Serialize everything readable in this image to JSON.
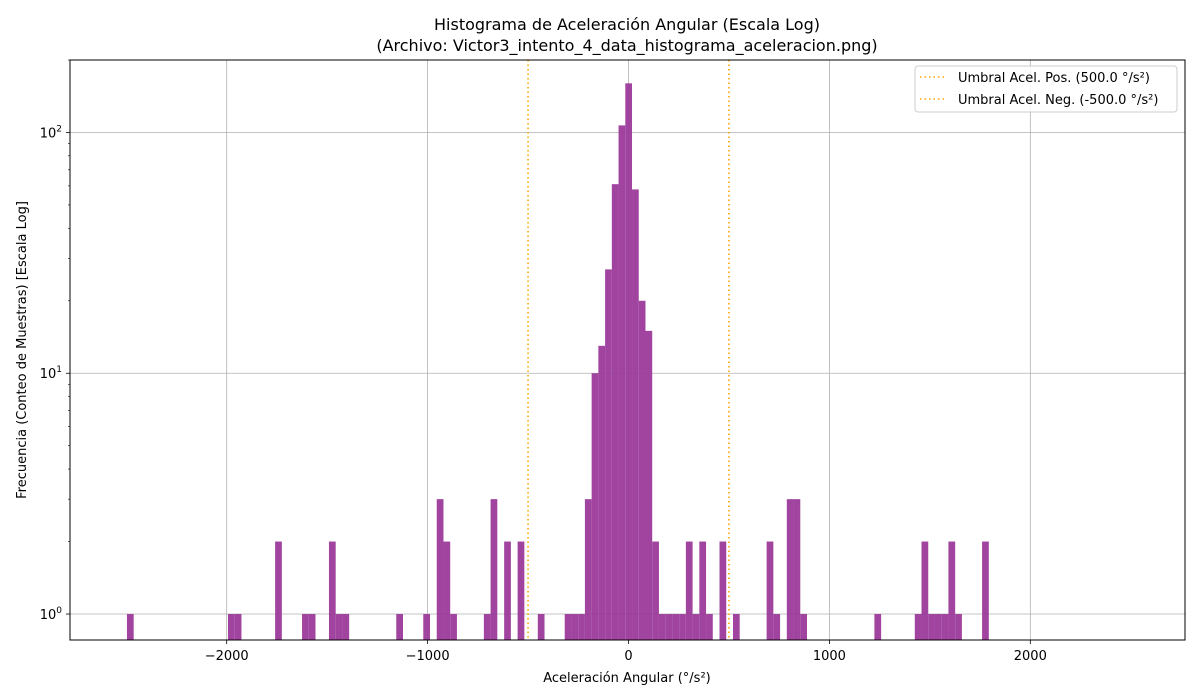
{
  "chart_data": {
    "type": "bar",
    "title": "Histograma de Aceleración Angular (Escala Log)",
    "subtitle": "(Archivo: Victor3_intento_4_data_histograma_aceleracion.png)",
    "xlabel": "Aceleración Angular (°/s²)",
    "ylabel": "Frecuencia (Conteo de Muestras) [Escala Log]",
    "x_scale": "linear",
    "y_scale": "log",
    "xlim": [
      -2780,
      2770
    ],
    "ylim": [
      0.78,
      200
    ],
    "xticks": [
      -2000,
      -1000,
      0,
      1000,
      2000
    ],
    "xtick_labels": [
      "−2000",
      "−1000",
      "0",
      "1000",
      "2000"
    ],
    "yticks": [
      1,
      10,
      100
    ],
    "ytick_labels": [
      "10^0",
      "10^1",
      "10^2"
    ],
    "grid": true,
    "bar_color": "#9b3a9b",
    "bin_width": 33.5,
    "bins": [
      {
        "x0": -2496.5,
        "count": 1
      },
      {
        "x0": -1993.5,
        "count": 1
      },
      {
        "x0": -1960,
        "count": 1
      },
      {
        "x0": -1759,
        "count": 2
      },
      {
        "x0": -1625,
        "count": 1
      },
      {
        "x0": -1591.5,
        "count": 1
      },
      {
        "x0": -1491,
        "count": 2
      },
      {
        "x0": -1457.5,
        "count": 1
      },
      {
        "x0": -1424,
        "count": 1
      },
      {
        "x0": -1156,
        "count": 1
      },
      {
        "x0": -1021.5,
        "count": 1
      },
      {
        "x0": -954.5,
        "count": 3
      },
      {
        "x0": -921,
        "count": 2
      },
      {
        "x0": -887.5,
        "count": 1
      },
      {
        "x0": -720,
        "count": 1
      },
      {
        "x0": -686.5,
        "count": 3
      },
      {
        "x0": -619,
        "count": 2
      },
      {
        "x0": -552,
        "count": 2
      },
      {
        "x0": -451.5,
        "count": 1
      },
      {
        "x0": -317.5,
        "count": 1
      },
      {
        "x0": -284,
        "count": 1
      },
      {
        "x0": -250.5,
        "count": 1
      },
      {
        "x0": -217,
        "count": 3
      },
      {
        "x0": -183.5,
        "count": 10
      },
      {
        "x0": -150,
        "count": 13
      },
      {
        "x0": -116.5,
        "count": 27
      },
      {
        "x0": -83,
        "count": 61
      },
      {
        "x0": -49.5,
        "count": 107
      },
      {
        "x0": -16,
        "count": 160
      },
      {
        "x0": 17.5,
        "count": 58
      },
      {
        "x0": 51,
        "count": 20
      },
      {
        "x0": 84.5,
        "count": 15
      },
      {
        "x0": 118,
        "count": 2
      },
      {
        "x0": 151.5,
        "count": 1
      },
      {
        "x0": 185,
        "count": 1
      },
      {
        "x0": 218.5,
        "count": 1
      },
      {
        "x0": 252,
        "count": 1
      },
      {
        "x0": 285.5,
        "count": 2
      },
      {
        "x0": 319,
        "count": 1
      },
      {
        "x0": 352.5,
        "count": 2
      },
      {
        "x0": 386,
        "count": 1
      },
      {
        "x0": 453,
        "count": 2
      },
      {
        "x0": 520,
        "count": 1
      },
      {
        "x0": 687.5,
        "count": 2
      },
      {
        "x0": 721,
        "count": 1
      },
      {
        "x0": 788,
        "count": 3
      },
      {
        "x0": 821.5,
        "count": 3
      },
      {
        "x0": 855,
        "count": 1
      },
      {
        "x0": 1224,
        "count": 1
      },
      {
        "x0": 1425,
        "count": 1
      },
      {
        "x0": 1458.5,
        "count": 2
      },
      {
        "x0": 1492,
        "count": 1
      },
      {
        "x0": 1525.5,
        "count": 1
      },
      {
        "x0": 1559,
        "count": 1
      },
      {
        "x0": 1592.5,
        "count": 2
      },
      {
        "x0": 1626,
        "count": 1
      },
      {
        "x0": 1760,
        "count": 2
      }
    ],
    "threshold_lines": [
      {
        "x": 500,
        "label": "Umbral Acel. Pos. (500.0 °/s²)",
        "color": "#ffa500",
        "style": "dotted"
      },
      {
        "x": -500,
        "label": "Umbral Acel. Neg. (-500.0 °/s²)",
        "color": "#ffa500",
        "style": "dotted"
      }
    ],
    "legend_position": "top-right"
  }
}
